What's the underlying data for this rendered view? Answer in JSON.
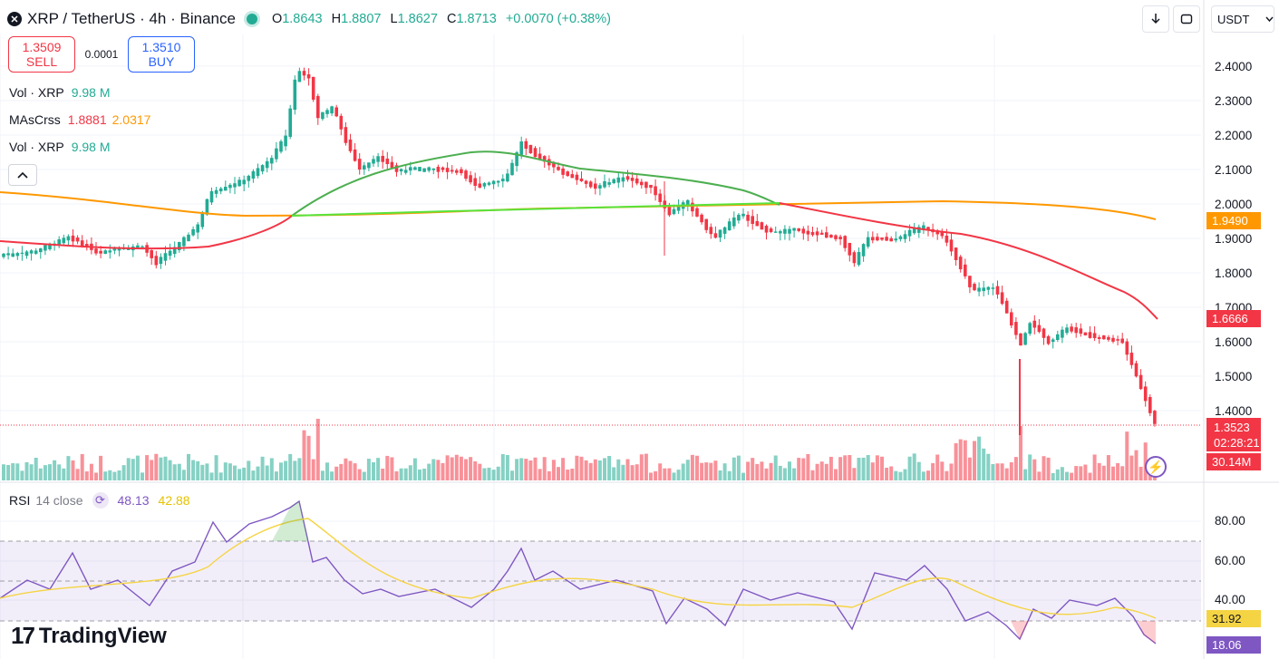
{
  "header": {
    "logo_glyph": "✕",
    "title": "XRP / TetherUS · 4h · Binance",
    "o_label": "O",
    "o_value": "1.8643",
    "h_label": "H",
    "h_value": "1.8807",
    "l_label": "L",
    "l_value": "1.8627",
    "c_label": "C",
    "c_value": "1.8713",
    "change": "+0.0070 (+0.38%)"
  },
  "trade": {
    "sell_price": "1.3509",
    "sell_label": "SELL",
    "spread": "0.0001",
    "buy_price": "1.3510",
    "buy_label": "BUY"
  },
  "indicators": {
    "vol1_label": "Vol · XRP",
    "vol1_value": "9.98 M",
    "ma_label": "MAsCrss",
    "ma_fast": "1.8881",
    "ma_slow": "2.0317",
    "vol2_label": "Vol · XRP",
    "vol2_value": "9.98 M"
  },
  "rsi": {
    "label": "RSI",
    "params": "14 close",
    "value1": "48.13",
    "value2": "42.88"
  },
  "toolbar": {
    "currency": "USDT",
    "download_icon": "download-icon",
    "fullscreen_icon": "fullscreen-icon"
  },
  "price_axis": {
    "ticks": [
      "2.4000",
      "2.3000",
      "2.2000",
      "2.1000",
      "2.0000",
      "1.9000",
      "1.8000",
      "1.7000",
      "1.6000",
      "1.5000",
      "1.4000"
    ],
    "tag_ma_slow": "1.9490",
    "tag_ma_fast": "1.6666",
    "tag_current": "1.3523",
    "tag_countdown": "02:28:21",
    "tag_volume": "30.14M"
  },
  "rsi_axis": {
    "ticks": [
      "80.00",
      "60.00",
      "40.00"
    ],
    "tag_ma": "31.92",
    "tag_rsi": "18.06"
  },
  "brand": {
    "name": "TradingView",
    "mark": "17"
  },
  "colors": {
    "up": "#22ab94",
    "down": "#f23645",
    "ma_fast": "#f23645",
    "ma_slow": "#ff9800",
    "ma_cross_green": "#4caf50",
    "ma_cross_lime": "#57e33b",
    "rsi": "#7e57c2",
    "rsi_ma": "#f5d444"
  }
}
